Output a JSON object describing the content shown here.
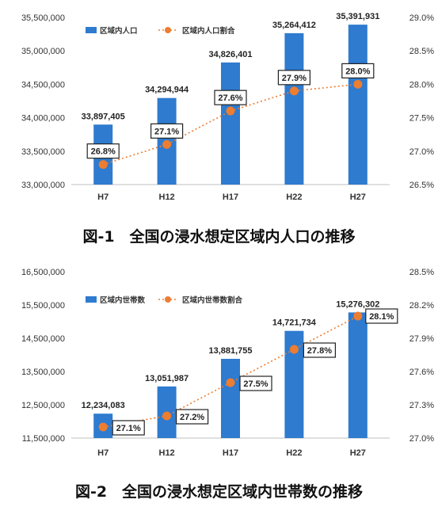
{
  "chart_data": [
    {
      "type": "bar",
      "title": "図-1　全国の浸水想定区域内人口の推移",
      "categories": [
        "H7",
        "H12",
        "H17",
        "H22",
        "H27"
      ],
      "series": [
        {
          "name": "区域内人口",
          "type": "bar",
          "axis": "left",
          "values": [
            33897405,
            34294944,
            34826401,
            35264412,
            35391931
          ],
          "labels": [
            "33,897,405",
            "34,294,944",
            "34,826,401",
            "35,264,412",
            "35,391,931"
          ],
          "color": "#2e7bcf"
        },
        {
          "name": "区域内人口割合",
          "type": "line",
          "axis": "right",
          "values": [
            26.8,
            27.1,
            27.6,
            27.9,
            28.0
          ],
          "labels": [
            "26.8%",
            "27.1%",
            "27.6%",
            "27.9%",
            "28.0%"
          ],
          "color": "#ed7d31"
        }
      ],
      "y_left": {
        "range": [
          33000000,
          35500000
        ],
        "ticks": [
          "33,000,000",
          "33,500,000",
          "34,000,000",
          "34,500,000",
          "35,000,000",
          "35,500,000"
        ],
        "tick_values": [
          33000000,
          33500000,
          34000000,
          34500000,
          35000000,
          35500000
        ]
      },
      "y_right": {
        "range": [
          26.5,
          29.0
        ],
        "ticks": [
          "26.5%",
          "27.0%",
          "27.5%",
          "28.0%",
          "28.5%",
          "29.0%"
        ],
        "tick_values": [
          26.5,
          27.0,
          27.5,
          28.0,
          28.5,
          29.0
        ]
      },
      "legend_position": "top-left",
      "grid": false
    },
    {
      "type": "bar",
      "title": "図-2　全国の浸水想定区域内世帯数の推移",
      "categories": [
        "H7",
        "H12",
        "H17",
        "H22",
        "H27"
      ],
      "series": [
        {
          "name": "区域内世帯数",
          "type": "bar",
          "axis": "left",
          "values": [
            12234083,
            13051987,
            13881755,
            14721734,
            15276302
          ],
          "labels": [
            "12,234,083",
            "13,051,987",
            "13,881,755",
            "14,721,734",
            "15,276,302"
          ],
          "color": "#2e7bcf"
        },
        {
          "name": "区域内世帯数割合",
          "type": "line",
          "axis": "right",
          "values": [
            27.1,
            27.2,
            27.5,
            27.8,
            28.1
          ],
          "labels": [
            "27.1%",
            "27.2%",
            "27.5%",
            "27.8%",
            "28.1%"
          ],
          "color": "#ed7d31"
        }
      ],
      "y_left": {
        "range": [
          11500000,
          16500000
        ],
        "ticks": [
          "11,500,000",
          "12,500,000",
          "13,500,000",
          "14,500,000",
          "15,500,000",
          "16,500,000"
        ],
        "tick_values": [
          11500000,
          12500000,
          13500000,
          14500000,
          15500000,
          16500000
        ]
      },
      "y_right": {
        "range": [
          27.0,
          28.5
        ],
        "ticks": [
          "27.0%",
          "27.3%",
          "27.6%",
          "27.9%",
          "28.2%",
          "28.5%"
        ],
        "tick_values": [
          27.0,
          27.3,
          27.6,
          27.9,
          28.2,
          28.5
        ]
      },
      "legend_position": "top-left",
      "grid": false
    }
  ]
}
